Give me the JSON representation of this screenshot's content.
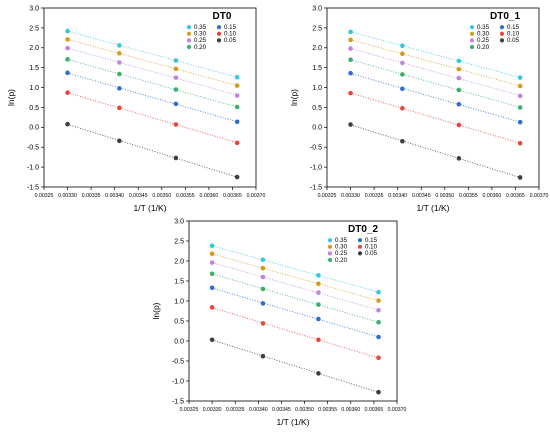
{
  "chart_data": [
    {
      "type": "scatter",
      "title": "DT0",
      "xlabel": "1/T  (1/K)",
      "ylabel": "ln(p)",
      "xlim": [
        0.00325,
        0.0037
      ],
      "ylim": [
        -1.5,
        3.0
      ],
      "x_ticks": [
        "0.00325",
        "0.00330",
        "0.00335",
        "0.00340",
        "0.00345",
        "0.00350",
        "0.00355",
        "0.00360",
        "0.00365",
        "0.00370"
      ],
      "y_ticks": [
        "-1.5",
        "-1.0",
        "-0.5",
        "0.0",
        "0.5",
        "1.0",
        "1.5",
        "2.0",
        "2.5",
        "3.0"
      ],
      "x": [
        0.0033,
        0.00341,
        0.00353,
        0.00366
      ],
      "series": [
        {
          "name": "0.35",
          "color": "#35c6e0",
          "values": [
            2.42,
            2.06,
            1.68,
            1.26
          ]
        },
        {
          "name": "0.30",
          "color": "#d49b1c",
          "values": [
            2.21,
            1.86,
            1.47,
            1.05
          ]
        },
        {
          "name": "0.25",
          "color": "#c283e4",
          "values": [
            1.99,
            1.63,
            1.25,
            0.8
          ]
        },
        {
          "name": "0.20",
          "color": "#3fae6e",
          "values": [
            1.71,
            1.34,
            0.95,
            0.51
          ]
        },
        {
          "name": "0.15",
          "color": "#2e6dd2",
          "values": [
            1.37,
            0.98,
            0.59,
            0.14
          ]
        },
        {
          "name": "0.10",
          "color": "#e8463c",
          "values": [
            0.87,
            0.49,
            0.07,
            -0.39
          ]
        },
        {
          "name": "0.05",
          "color": "#3f3f3f",
          "values": [
            0.08,
            -0.34,
            -0.77,
            -1.25
          ]
        }
      ],
      "trendlines": "dotted"
    },
    {
      "type": "scatter",
      "title": "DT0_1",
      "xlabel": "1/T  (1/K)",
      "ylabel": "ln(p)",
      "xlim": [
        0.00325,
        0.0037
      ],
      "ylim": [
        -1.5,
        3.0
      ],
      "x_ticks": [
        "0.00325",
        "0.00330",
        "0.00335",
        "0.00340",
        "0.00345",
        "0.00350",
        "0.00355",
        "0.00360",
        "0.00365",
        "0.00370"
      ],
      "y_ticks": [
        "-1.5",
        "-1.0",
        "-0.5",
        "0.0",
        "0.5",
        "1.0",
        "1.5",
        "2.0",
        "2.5",
        "3.0"
      ],
      "x": [
        0.0033,
        0.00341,
        0.00353,
        0.00366
      ],
      "series": [
        {
          "name": "0.35",
          "color": "#35c6e0",
          "values": [
            2.4,
            2.05,
            1.67,
            1.25
          ]
        },
        {
          "name": "0.30",
          "color": "#d49b1c",
          "values": [
            2.2,
            1.85,
            1.46,
            1.04
          ]
        },
        {
          "name": "0.25",
          "color": "#c283e4",
          "values": [
            1.98,
            1.62,
            1.24,
            0.79
          ]
        },
        {
          "name": "0.20",
          "color": "#3fae6e",
          "values": [
            1.7,
            1.33,
            0.94,
            0.5
          ]
        },
        {
          "name": "0.15",
          "color": "#2e6dd2",
          "values": [
            1.36,
            0.97,
            0.58,
            0.13
          ]
        },
        {
          "name": "0.10",
          "color": "#e8463c",
          "values": [
            0.86,
            0.48,
            0.06,
            -0.4
          ]
        },
        {
          "name": "0.05",
          "color": "#3f3f3f",
          "values": [
            0.07,
            -0.35,
            -0.78,
            -1.26
          ]
        }
      ],
      "trendlines": "dotted"
    },
    {
      "type": "scatter",
      "title": "DT0_2",
      "xlabel": "1/T  (1/K)",
      "ylabel": "ln(p)",
      "xlim": [
        0.00325,
        0.0037
      ],
      "ylim": [
        -1.5,
        3.0
      ],
      "x_ticks": [
        "0.00325",
        "0.00330",
        "0.00335",
        "0.00340",
        "0.00345",
        "0.00350",
        "0.00355",
        "0.00360",
        "0.00365",
        "0.00370"
      ],
      "y_ticks": [
        "-1.5",
        "-1.0",
        "-0.5",
        "0.0",
        "0.5",
        "1.0",
        "1.5",
        "2.0",
        "2.5",
        "3.0"
      ],
      "x": [
        0.0033,
        0.00341,
        0.00353,
        0.00366
      ],
      "series": [
        {
          "name": "0.35",
          "color": "#35c6e0",
          "values": [
            2.38,
            2.03,
            1.64,
            1.22
          ]
        },
        {
          "name": "0.30",
          "color": "#d49b1c",
          "values": [
            2.18,
            1.82,
            1.43,
            1.01
          ]
        },
        {
          "name": "0.25",
          "color": "#c283e4",
          "values": [
            1.96,
            1.6,
            1.21,
            0.77
          ]
        },
        {
          "name": "0.20",
          "color": "#3fae6e",
          "values": [
            1.68,
            1.3,
            0.91,
            0.47
          ]
        },
        {
          "name": "0.15",
          "color": "#2e6dd2",
          "values": [
            1.33,
            0.94,
            0.55,
            0.1
          ]
        },
        {
          "name": "0.10",
          "color": "#e8463c",
          "values": [
            0.84,
            0.44,
            0.03,
            -0.42
          ]
        },
        {
          "name": "0.05",
          "color": "#3f3f3f",
          "values": [
            0.03,
            -0.38,
            -0.81,
            -1.28
          ]
        }
      ],
      "trendlines": "dotted"
    }
  ]
}
